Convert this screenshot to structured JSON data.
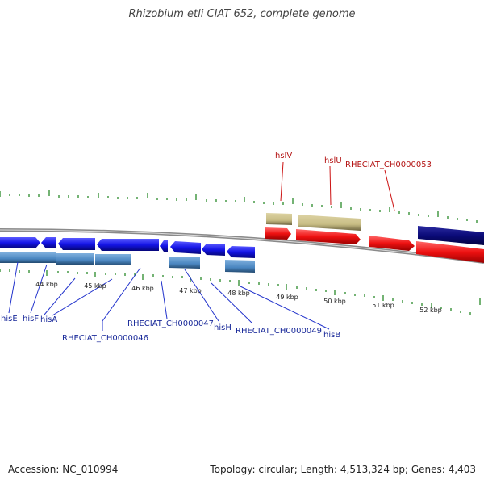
{
  "title": "Rhizobium etli CIAT 652, complete genome",
  "footer": {
    "accession": "Accession: NC_010994",
    "summary": "Topology: circular; Length: 4,513,324 bp; Genes: 4,403"
  },
  "scale_labels": [
    "44 kbp",
    "45 kbp",
    "46 kbp",
    "47 kbp",
    "48 kbp",
    "49 kbp",
    "50 kbp",
    "51 kbp",
    "52 kbp"
  ],
  "gene_labels_bottom": [
    "hisE",
    "hisF",
    "hisA",
    "RHECIAT_CH0000046",
    "RHECIAT_CH0000047",
    "hisH",
    "RHECIAT_CH0000049",
    "hisB"
  ],
  "gene_labels_top": [
    "hslV",
    "hslU",
    "RHECIAT_CH0000053"
  ],
  "colors": {
    "forward_gene": "#ee1111",
    "reverse_gene": "#1414e6",
    "reverse_cds": "#4a86c0",
    "forward_cds": "#c8bd85",
    "dark_gene": "#0a0a78",
    "backbone": "#808080",
    "tick": "#2a8a2a"
  }
}
